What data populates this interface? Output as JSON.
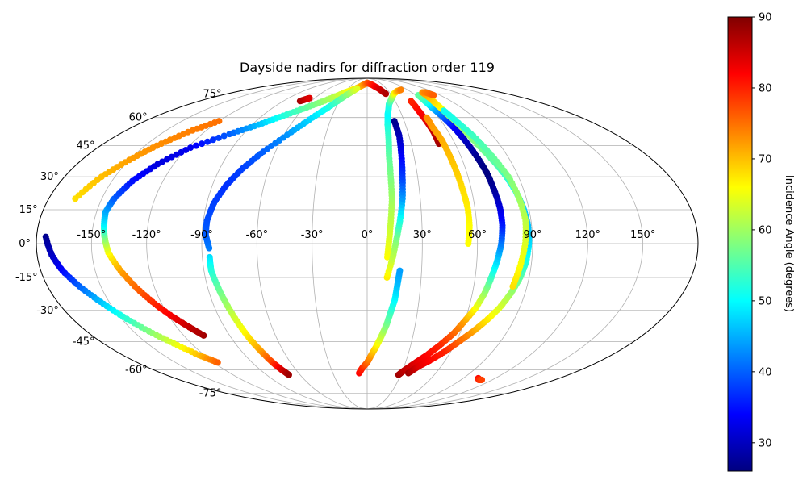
{
  "chart_data": {
    "type": "scatter",
    "projection": "mollweide",
    "title": "Dayside nadirs for diffraction order 119",
    "xlabel": "",
    "ylabel": "",
    "grid": true,
    "lon_ticks": [
      -150,
      -120,
      -90,
      -60,
      -30,
      0,
      30,
      60,
      90,
      120,
      150
    ],
    "lon_tick_labels": [
      "-150°",
      "-120°",
      "-90°",
      "-60°",
      "-30°",
      "0°",
      "30°",
      "60°",
      "90°",
      "120°",
      "150°"
    ],
    "lat_ticks": [
      -75,
      -60,
      -45,
      -30,
      -15,
      0,
      15,
      30,
      45,
      60,
      75
    ],
    "lat_tick_labels": [
      "-75°",
      "-60°",
      "-45°",
      "-30°",
      "-15°",
      "0°",
      "15°",
      "30°",
      "45°",
      "60°",
      "75°"
    ],
    "colorbar": {
      "label": "Incidence Angle (degrees)",
      "colormap": "jet",
      "range": [
        26,
        90
      ],
      "ticks": [
        30,
        40,
        50,
        60,
        70,
        80,
        90
      ],
      "tick_labels": [
        "30",
        "40",
        "50",
        "60",
        "70",
        "80",
        "90"
      ],
      "position": "right"
    },
    "series": [
      {
        "points": [
          [
            -107,
            -42,
            88
          ],
          [
            -112,
            -38,
            86
          ],
          [
            -118,
            -33,
            83
          ],
          [
            -124,
            -27,
            80
          ],
          [
            -130,
            -20,
            76
          ],
          [
            -136,
            -12,
            72
          ],
          [
            -141,
            -4,
            66
          ],
          [
            -143,
            3,
            58
          ],
          [
            -144,
            8,
            50
          ],
          [
            -145,
            14,
            45
          ],
          [
            -143,
            20,
            40
          ],
          [
            -138,
            28,
            35
          ],
          [
            -130,
            36,
            32
          ],
          [
            -118,
            44,
            33
          ],
          [
            -100,
            51,
            40
          ],
          [
            -85,
            56,
            46
          ],
          [
            -72,
            61,
            52
          ],
          [
            -58,
            66,
            56
          ],
          [
            -44,
            71,
            60
          ],
          [
            -30,
            76,
            64
          ],
          [
            -18,
            79,
            68
          ],
          [
            -8,
            82,
            72
          ],
          [
            0,
            84,
            76
          ],
          [
            10,
            82,
            80
          ],
          [
            18,
            79,
            84
          ],
          [
            24,
            75,
            87
          ]
        ]
      },
      {
        "points": [
          [
            -175,
            3,
            27
          ],
          [
            -172,
            -5,
            30
          ],
          [
            -168,
            -12,
            34
          ],
          [
            -162,
            -19,
            40
          ],
          [
            -155,
            -26,
            46
          ],
          [
            -148,
            -33,
            52
          ],
          [
            -140,
            -40,
            58
          ],
          [
            -132,
            -46,
            64
          ],
          [
            -124,
            -52,
            70
          ],
          [
            -117,
            -56,
            76
          ]
        ]
      },
      {
        "points": [
          [
            -165,
            20,
            68
          ],
          [
            -158,
            30,
            70
          ],
          [
            -150,
            38,
            72
          ],
          [
            -142,
            45,
            73
          ],
          [
            -132,
            52,
            74
          ],
          [
            -120,
            58,
            75
          ]
        ]
      },
      {
        "points": [
          [
            -86,
            -2,
            42
          ],
          [
            -88,
            4,
            40
          ],
          [
            -88,
            10,
            39
          ],
          [
            -86,
            18,
            38
          ],
          [
            -82,
            26,
            37
          ],
          [
            -76,
            34,
            38
          ],
          [
            -68,
            42,
            40
          ],
          [
            -56,
            52,
            44
          ],
          [
            -46,
            60,
            48
          ],
          [
            -36,
            67,
            52
          ],
          [
            -26,
            74,
            58
          ],
          [
            -16,
            79,
            64
          ]
        ]
      },
      {
        "points": [
          [
            -86,
            -6,
            48
          ],
          [
            -86,
            -12,
            52
          ],
          [
            -84,
            -20,
            56
          ],
          [
            -82,
            -28,
            60
          ],
          [
            -80,
            -36,
            64
          ],
          [
            -78,
            -44,
            68
          ],
          [
            -76,
            -50,
            72
          ],
          [
            -74,
            -56,
            78
          ],
          [
            -72,
            -60,
            84
          ],
          [
            -70,
            -63,
            88
          ]
        ]
      },
      {
        "points": [
          [
            -72,
            70,
            88
          ],
          [
            -69,
            71,
            86
          ],
          [
            -66,
            72,
            84
          ]
        ]
      },
      {
        "points": [
          [
            -7,
            -62,
            82
          ],
          [
            -4,
            -59,
            80
          ],
          [
            0,
            -56,
            76
          ],
          [
            3,
            -52,
            72
          ],
          [
            6,
            -48,
            68
          ],
          [
            9,
            -43,
            63
          ],
          [
            12,
            -37,
            58
          ],
          [
            14,
            -31,
            54
          ],
          [
            16,
            -25,
            50
          ],
          [
            17,
            -18,
            46
          ],
          [
            18,
            -12,
            44
          ]
        ]
      },
      {
        "points": [
          [
            11,
            -6,
            66
          ],
          [
            12,
            2,
            64
          ],
          [
            13,
            10,
            62
          ],
          [
            14,
            20,
            60
          ],
          [
            14,
            30,
            58
          ],
          [
            14,
            40,
            56
          ],
          [
            15,
            48,
            54
          ],
          [
            16,
            56,
            52
          ],
          [
            18,
            62,
            50
          ],
          [
            22,
            68,
            52
          ],
          [
            28,
            72,
            58
          ],
          [
            34,
            75,
            64
          ],
          [
            42,
            77,
            70
          ],
          [
            50,
            78,
            74
          ]
        ]
      },
      {
        "points": [
          [
            11,
            -15,
            67
          ],
          [
            14,
            -6,
            62
          ],
          [
            16,
            2,
            58
          ],
          [
            18,
            10,
            52
          ],
          [
            20,
            20,
            44
          ],
          [
            21,
            30,
            38
          ],
          [
            22,
            40,
            34
          ],
          [
            23,
            50,
            30
          ],
          [
            22,
            58,
            27
          ]
        ]
      },
      {
        "points": [
          [
            49,
            46,
            88
          ],
          [
            49,
            52,
            86
          ],
          [
            48,
            58,
            84
          ],
          [
            47,
            64,
            82
          ],
          [
            47,
            70,
            80
          ]
        ]
      },
      {
        "points": [
          [
            55,
            0,
            66
          ],
          [
            56,
            8,
            66
          ],
          [
            56,
            16,
            67
          ],
          [
            55,
            24,
            68
          ],
          [
            54,
            32,
            69
          ],
          [
            53,
            40,
            70
          ],
          [
            52,
            48,
            71
          ],
          [
            50,
            55,
            72
          ],
          [
            50,
            60,
            73
          ]
        ]
      },
      {
        "points": [
          [
            28,
            -63,
            88
          ],
          [
            32,
            -60,
            86
          ],
          [
            38,
            -56,
            84
          ],
          [
            44,
            -52,
            82
          ],
          [
            50,
            -47,
            80
          ],
          [
            56,
            -41,
            76
          ],
          [
            60,
            -35,
            72
          ],
          [
            64,
            -29,
            66
          ],
          [
            67,
            -22,
            60
          ],
          [
            69,
            -15,
            54
          ],
          [
            71,
            -8,
            48
          ],
          [
            73,
            0,
            42
          ],
          [
            74,
            8,
            36
          ],
          [
            74,
            16,
            32
          ],
          [
            73,
            24,
            28
          ],
          [
            72,
            32,
            26
          ],
          [
            70,
            40,
            27
          ],
          [
            68,
            48,
            30
          ],
          [
            66,
            55,
            34
          ],
          [
            64,
            61,
            40
          ],
          [
            62,
            66,
            46
          ],
          [
            62,
            70,
            52
          ],
          [
            63,
            74,
            56
          ]
        ]
      },
      {
        "points": [
          [
            36,
            -62,
            88
          ],
          [
            42,
            -58,
            84
          ],
          [
            48,
            -55,
            82
          ],
          [
            56,
            -50,
            80
          ],
          [
            62,
            -45,
            76
          ],
          [
            68,
            -40,
            72
          ],
          [
            73,
            -35,
            68
          ],
          [
            78,
            -29,
            64
          ],
          [
            82,
            -22,
            60
          ],
          [
            85,
            -15,
            56
          ],
          [
            87,
            -8,
            52
          ],
          [
            88,
            0,
            48
          ],
          [
            88,
            8,
            46
          ],
          [
            87,
            16,
            47
          ],
          [
            85,
            24,
            50
          ],
          [
            82,
            32,
            54
          ],
          [
            78,
            40,
            56
          ],
          [
            74,
            48,
            58
          ],
          [
            72,
            56,
            61
          ],
          [
            70,
            62,
            64
          ],
          [
            70,
            68,
            67
          ],
          [
            72,
            73,
            70
          ],
          [
            74,
            76,
            72
          ],
          [
            78,
            76,
            74
          ],
          [
            82,
            74,
            76
          ]
        ]
      },
      {
        "points": [
          [
            82,
            -19,
            68
          ],
          [
            84,
            -10,
            66
          ],
          [
            86,
            0,
            64
          ],
          [
            87,
            10,
            62
          ],
          [
            86,
            20,
            60
          ],
          [
            84,
            30,
            58
          ],
          [
            80,
            40,
            56
          ],
          [
            76,
            50,
            54
          ],
          [
            72,
            58,
            52
          ],
          [
            70,
            64,
            51
          ]
        ]
      },
      {
        "points": [
          [
            104,
            -65,
            82
          ],
          [
            107,
            -66,
            80
          ],
          [
            110,
            -66,
            78
          ]
        ]
      }
    ]
  }
}
